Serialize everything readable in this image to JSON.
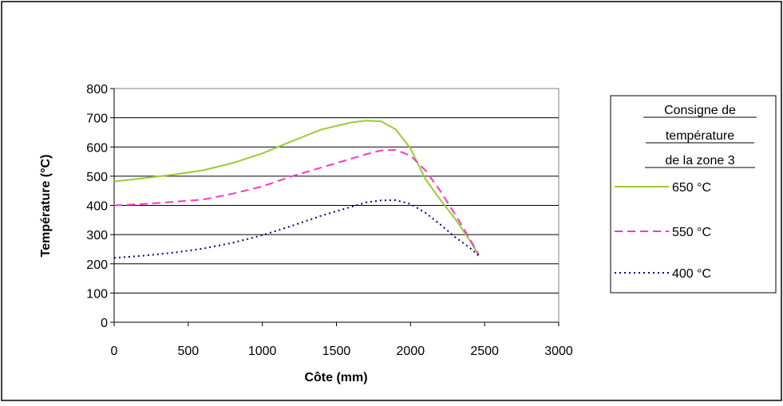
{
  "chart_data": {
    "type": "line",
    "title": "",
    "xlabel": "Côte (mm)",
    "ylabel": "Température (°C)",
    "xlim": [
      0,
      3000
    ],
    "ylim": [
      0,
      800
    ],
    "xticks": [
      "0",
      "500",
      "1000",
      "1500",
      "2000",
      "2500",
      "3000"
    ],
    "yticks": [
      "0",
      "100",
      "200",
      "300",
      "400",
      "500",
      "600",
      "700",
      "800"
    ],
    "grid": "horizontal",
    "legend": {
      "title": "Consigne de température de la zone 3",
      "title_lines": [
        "Consigne de",
        "température",
        "de la zone 3"
      ],
      "placement": "right"
    },
    "series": [
      {
        "name": "650 °C",
        "color": "#99cc33",
        "style": "solid",
        "x": [
          0,
          200,
          400,
          600,
          800,
          1000,
          1200,
          1400,
          1600,
          1700,
          1800,
          1900,
          2000,
          2100,
          2200,
          2300,
          2400,
          2460
        ],
        "y": [
          482,
          493,
          505,
          520,
          545,
          578,
          620,
          660,
          684,
          690,
          688,
          660,
          595,
          490,
          420,
          355,
          280,
          230
        ]
      },
      {
        "name": "550 °C",
        "color": "#ff33cc",
        "style": "dashed",
        "x": [
          0,
          200,
          400,
          600,
          800,
          1000,
          1200,
          1400,
          1600,
          1700,
          1800,
          1900,
          2000,
          2100,
          2200,
          2300,
          2400,
          2460
        ],
        "y": [
          400,
          405,
          412,
          420,
          440,
          465,
          500,
          530,
          560,
          575,
          588,
          590,
          570,
          520,
          450,
          370,
          285,
          232
        ]
      },
      {
        "name": "400 °C",
        "color": "#000080",
        "style": "dotted",
        "x": [
          0,
          200,
          400,
          600,
          800,
          1000,
          1200,
          1400,
          1600,
          1700,
          1800,
          1900,
          2000,
          2100,
          2200,
          2300,
          2400,
          2460
        ],
        "y": [
          220,
          228,
          238,
          252,
          272,
          298,
          330,
          365,
          395,
          410,
          417,
          418,
          405,
          375,
          335,
          292,
          255,
          228
        ]
      }
    ]
  }
}
